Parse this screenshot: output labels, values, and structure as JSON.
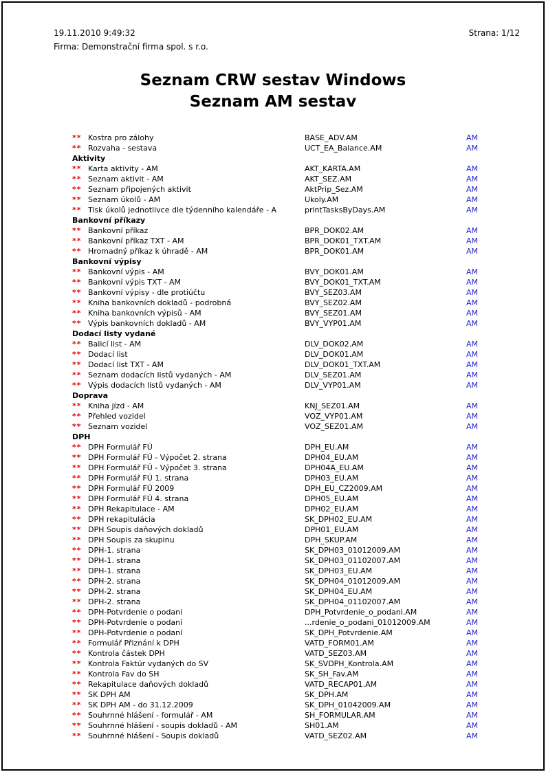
{
  "header": {
    "datetime": "19.11.2010  9:49:32",
    "page_label": "Strana: 1/12",
    "company": "Firma: Demonstrační firma spol. s r.o."
  },
  "title": {
    "line1": "Seznam CRW sestav Windows",
    "line2": "Seznam AM sestav"
  },
  "colors": {
    "marker": "#e00000",
    "type": "#2222cc"
  },
  "marker": "**",
  "rows": [
    {
      "name": "Kostra pro zálohy",
      "file": "BASE_ADV.AM",
      "type": "AM"
    },
    {
      "name": "Rozvaha - sestava",
      "file": "UCT_EA_Balance.AM",
      "type": "AM"
    },
    {
      "section": "Aktivity"
    },
    {
      "name": "Karta aktivity - AM",
      "file": "AKT_KARTA.AM",
      "type": "AM"
    },
    {
      "name": "Seznam aktivit - AM",
      "file": "AKT_SEZ.AM",
      "type": "AM"
    },
    {
      "name": "Seznam připojených aktivit",
      "file": "AktPrip_Sez.AM",
      "type": "AM"
    },
    {
      "name": "Seznam úkolů - AM",
      "file": "Ukoly.AM",
      "type": "AM"
    },
    {
      "name": "Tisk úkolů jednotlivce dle týdenního kalendáře - A",
      "file": "printTasksByDays.AM",
      "type": "AM"
    },
    {
      "section": "Bankovní příkazy"
    },
    {
      "name": "Bankovní příkaz",
      "file": "BPR_DOK02.AM",
      "type": "AM"
    },
    {
      "name": "Bankovní příkaz TXT - AM",
      "file": "BPR_DOK01_TXT.AM",
      "type": "AM"
    },
    {
      "name": "Hromadný příkaz k úhradě - AM",
      "file": "BPR_DOK01.AM",
      "type": "AM"
    },
    {
      "section": "Bankovní výpisy"
    },
    {
      "name": "Bankovní výpis - AM",
      "file": "BVY_DOK01.AM",
      "type": "AM"
    },
    {
      "name": "Bankovní výpis TXT - AM",
      "file": "BVY_DOK01_TXT.AM",
      "type": "AM"
    },
    {
      "name": "Bankovní výpisy - dle protiúčtu",
      "file": "BVY_SEZ03.AM",
      "type": "AM"
    },
    {
      "name": "Kniha bankovních dokladů - podrobná",
      "file": "BVY_SEZ02.AM",
      "type": "AM"
    },
    {
      "name": "Kniha bankovních výpisů - AM",
      "file": "BVY_SEZ01.AM",
      "type": "AM"
    },
    {
      "name": "Výpis bankovních dokladů - AM",
      "file": "BVY_VYP01.AM",
      "type": "AM"
    },
    {
      "section": "Dodací listy vydané"
    },
    {
      "name": "Balicí list - AM",
      "file": "DLV_DOK02.AM",
      "type": "AM"
    },
    {
      "name": "Dodací list",
      "file": "DLV_DOK01.AM",
      "type": "AM"
    },
    {
      "name": "Dodací list TXT - AM",
      "file": "DLV_DOK01_TXT.AM",
      "type": "AM"
    },
    {
      "name": "Seznam dodacích listů vydaných - AM",
      "file": "DLV_SEZ01.AM",
      "type": "AM"
    },
    {
      "name": "Výpis dodacích listů vydaných - AM",
      "file": "DLV_VYP01.AM",
      "type": "AM"
    },
    {
      "section": "Doprava"
    },
    {
      "name": "Kniha jízd - AM",
      "file": "KNJ_SEZ01.AM",
      "type": "AM"
    },
    {
      "name": "Přehled vozidel",
      "file": "VOZ_VYP01.AM",
      "type": "AM"
    },
    {
      "name": "Seznam vozidel",
      "file": "VOZ_SEZ01.AM",
      "type": "AM"
    },
    {
      "section": "DPH"
    },
    {
      "name": "DPH Formulář FÚ",
      "file": "DPH_EU.AM",
      "type": "AM"
    },
    {
      "name": "DPH Formulář FÚ - Výpočet 2. strana",
      "file": "DPH04_EU.AM",
      "type": "AM"
    },
    {
      "name": "DPH Formulář FÚ - Výpočet 3. strana",
      "file": "DPH04A_EU.AM",
      "type": "AM"
    },
    {
      "name": "DPH Formulář FÚ 1. strana",
      "file": "DPH03_EU.AM",
      "type": "AM"
    },
    {
      "name": "DPH Formulář FÚ 2009",
      "file": "DPH_EU_CZ2009.AM",
      "type": "AM"
    },
    {
      "name": "DPH Formulář FÚ 4. strana",
      "file": "DPH05_EU.AM",
      "type": "AM"
    },
    {
      "name": "DPH Rekapitulace - AM",
      "file": "DPH02_EU.AM",
      "type": "AM"
    },
    {
      "name": "DPH rekapitulácia",
      "file": "SK_DPH02_EU.AM",
      "type": "AM"
    },
    {
      "name": "DPH Soupis daňových dokladů",
      "file": "DPH01_EU.AM",
      "type": "AM"
    },
    {
      "name": "DPH Soupis za skupinu",
      "file": "DPH_SKUP.AM",
      "type": "AM"
    },
    {
      "name": "DPH-1. strana",
      "file": "SK_DPH03_01012009.AM",
      "type": "AM"
    },
    {
      "name": "DPH-1. strana",
      "file": "SK_DPH03_01102007.AM",
      "type": "AM"
    },
    {
      "name": "DPH-1. strana",
      "file": "SK_DPH03_EU.AM",
      "type": "AM"
    },
    {
      "name": "DPH-2. strana",
      "file": "SK_DPH04_01012009.AM",
      "type": "AM"
    },
    {
      "name": "DPH-2. strana",
      "file": "SK_DPH04_EU.AM",
      "type": "AM"
    },
    {
      "name": "DPH-2. strana",
      "file": "SK_DPH04_01102007.AM",
      "type": "AM"
    },
    {
      "name": "DPH-Potvrdenie o podani",
      "file": "DPH_Potvrdenie_o_podani.AM",
      "type": "AM"
    },
    {
      "name": "DPH-Potvrdenie o podaní",
      "file": "...rdenie_o_podani_01012009.AM",
      "type": "AM"
    },
    {
      "name": "DPH-Potvrdenie o podaní",
      "file": "SK_DPH_Potvrdenie.AM",
      "type": "AM"
    },
    {
      "name": "Formulář Přiznání k DPH",
      "file": "VATD_FORM01.AM",
      "type": "AM"
    },
    {
      "name": "Kontrola částek DPH",
      "file": "VATD_SEZ03.AM",
      "type": "AM"
    },
    {
      "name": "Kontrola Faktúr vydaných do SV",
      "file": "SK_SVDPH_Kontrola.AM",
      "type": "AM"
    },
    {
      "name": "Kontrola Fav do SH",
      "file": "SK_SH_Fav.AM",
      "type": "AM"
    },
    {
      "name": "Rekapitulace daňových dokladů",
      "file": "VATD_RECAP01.AM",
      "type": "AM"
    },
    {
      "name": "SK DPH AM",
      "file": "SK_DPH.AM",
      "type": "AM"
    },
    {
      "name": "SK DPH AM - do 31.12.2009",
      "file": "SK_DPH_01042009.AM",
      "type": "AM"
    },
    {
      "name": "Souhrnné hlášení - formulář - AM",
      "file": "SH_FORMULAR.AM",
      "type": "AM"
    },
    {
      "name": "Souhrnné hlášení - soupis  dokladů - AM",
      "file": "SH01.AM",
      "type": "AM"
    },
    {
      "name": "Souhrnné hlášení - Soupis dokladů",
      "file": "VATD_SEZ02.AM",
      "type": "AM"
    }
  ]
}
